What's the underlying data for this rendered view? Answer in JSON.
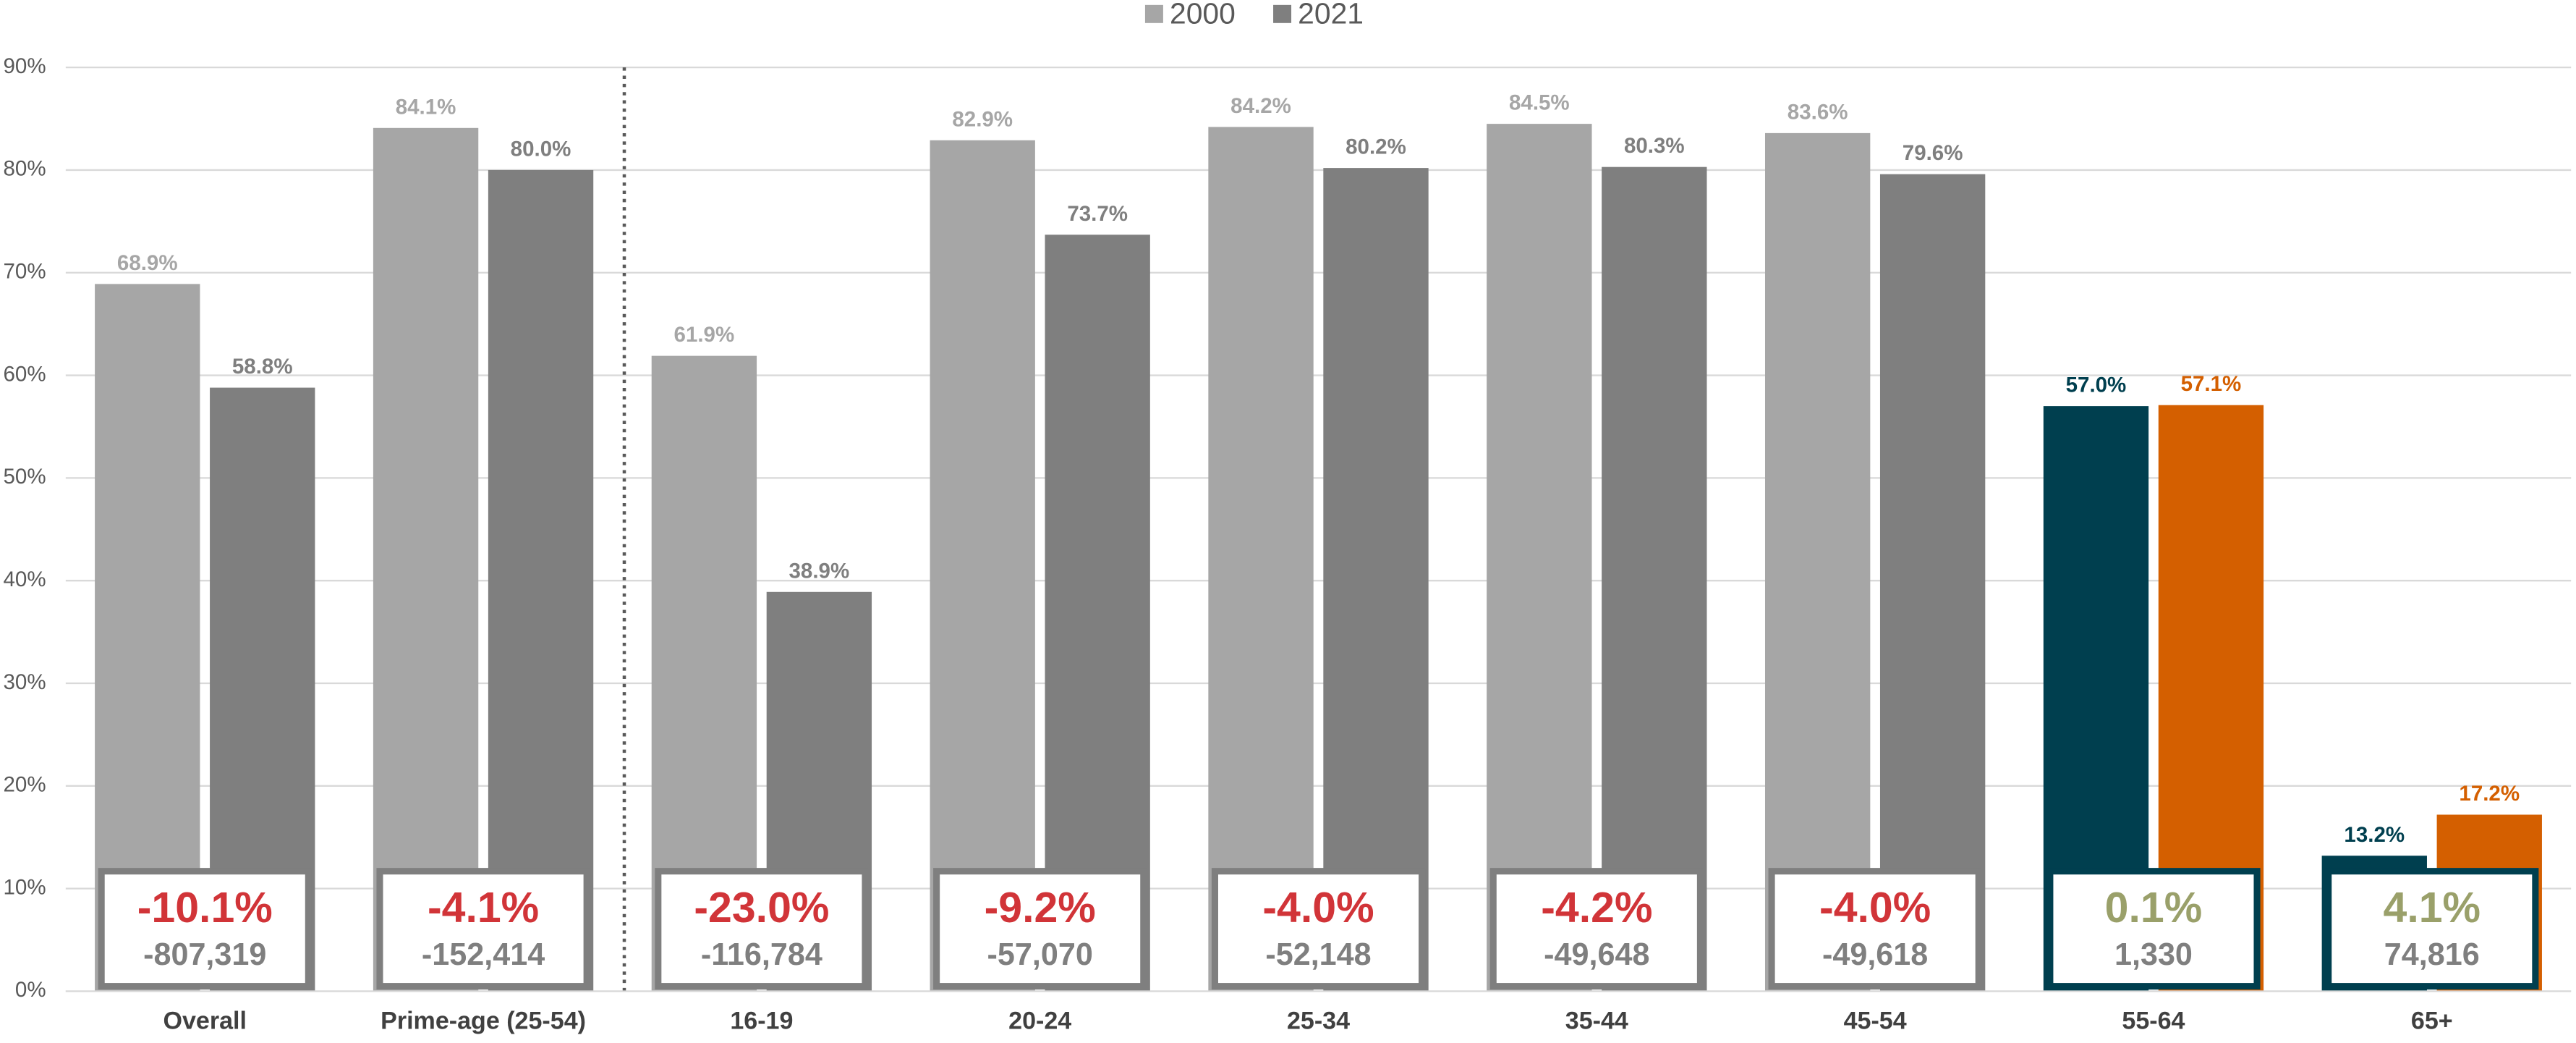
{
  "chart_data": {
    "type": "bar",
    "categories": [
      "Overall",
      "Prime-age (25-54)",
      "16-19",
      "20-24",
      "25-34",
      "35-44",
      "45-54",
      "55-64",
      "65+"
    ],
    "series": [
      {
        "name": "2000",
        "color": "#a6a6a6",
        "colors": [
          "#a6a6a6",
          "#a6a6a6",
          "#a6a6a6",
          "#a6a6a6",
          "#a6a6a6",
          "#a6a6a6",
          "#a6a6a6",
          "#003f4f",
          "#003f4f"
        ],
        "values": [
          68.9,
          84.1,
          61.9,
          82.9,
          84.2,
          84.5,
          83.6,
          57.0,
          13.2
        ],
        "value_labels": [
          "68.9%",
          "84.1%",
          "61.9%",
          "82.9%",
          "84.2%",
          "84.5%",
          "83.6%",
          "57.0%",
          "13.2%"
        ]
      },
      {
        "name": "2021",
        "color": "#7f7f7f",
        "colors": [
          "#7f7f7f",
          "#7f7f7f",
          "#7f7f7f",
          "#7f7f7f",
          "#7f7f7f",
          "#7f7f7f",
          "#7f7f7f",
          "#d45f00",
          "#d45f00"
        ],
        "values": [
          58.8,
          80.0,
          38.9,
          73.7,
          80.2,
          80.3,
          79.6,
          57.1,
          17.2
        ],
        "value_labels": [
          "58.8%",
          "80.0%",
          "38.9%",
          "73.7%",
          "80.2%",
          "80.3%",
          "79.6%",
          "57.1%",
          "17.2%"
        ]
      }
    ],
    "changes": [
      -10.1,
      -4.1,
      -23.0,
      -9.2,
      -4.0,
      -4.2,
      -4.0,
      0.1,
      4.1
    ],
    "change_labels": [
      "-10.1%",
      "-4.1%",
      "-23.0%",
      "-9.2%",
      "-4.0%",
      "-4.2%",
      "-4.0%",
      "0.1%",
      "4.1%"
    ],
    "counts": [
      -807319,
      -152414,
      -116784,
      -57070,
      -52148,
      -49648,
      -49618,
      1330,
      74816
    ],
    "count_labels": [
      "-807,319",
      "-152,414",
      "-116,784",
      "-57,070",
      "-52,148",
      "-49,648",
      "-49,618",
      "1,330",
      "74,816"
    ],
    "negative_color": "#d13438",
    "positive_color": "#9aa06a",
    "ylim": [
      0,
      90
    ],
    "yticks": [
      {
        "value": 0,
        "label": "0%"
      },
      {
        "value": 10,
        "label": "10%"
      },
      {
        "value": 20,
        "label": "20%"
      },
      {
        "value": 30,
        "label": "30%"
      },
      {
        "value": 40,
        "label": "40%"
      },
      {
        "value": 50,
        "label": "50%"
      },
      {
        "value": 60,
        "label": "60%"
      },
      {
        "value": 70,
        "label": "70%"
      },
      {
        "value": 80,
        "label": "80%"
      },
      {
        "value": 90,
        "label": "90%"
      }
    ],
    "grid": true,
    "legend": "top"
  }
}
